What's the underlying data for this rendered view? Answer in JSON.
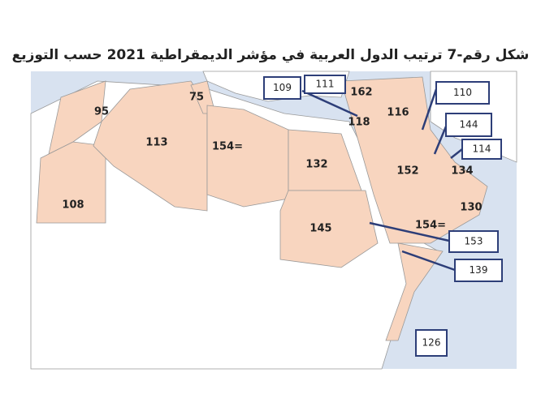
{
  "title": "شكل رقم-7 ترتيب الدول العربية في مؤشر الديمقراطية 2021 حسب التوزيع",
  "labels": [
    "95",
    "75",
    "113",
    "154=",
    "108",
    "132",
    "145",
    "118",
    "162",
    "116",
    "152",
    "134",
    "130",
    "154="
  ],
  "boxed_labels": [
    "109",
    "111",
    "110",
    "144",
    "114",
    "153",
    "139",
    "126"
  ]
}
